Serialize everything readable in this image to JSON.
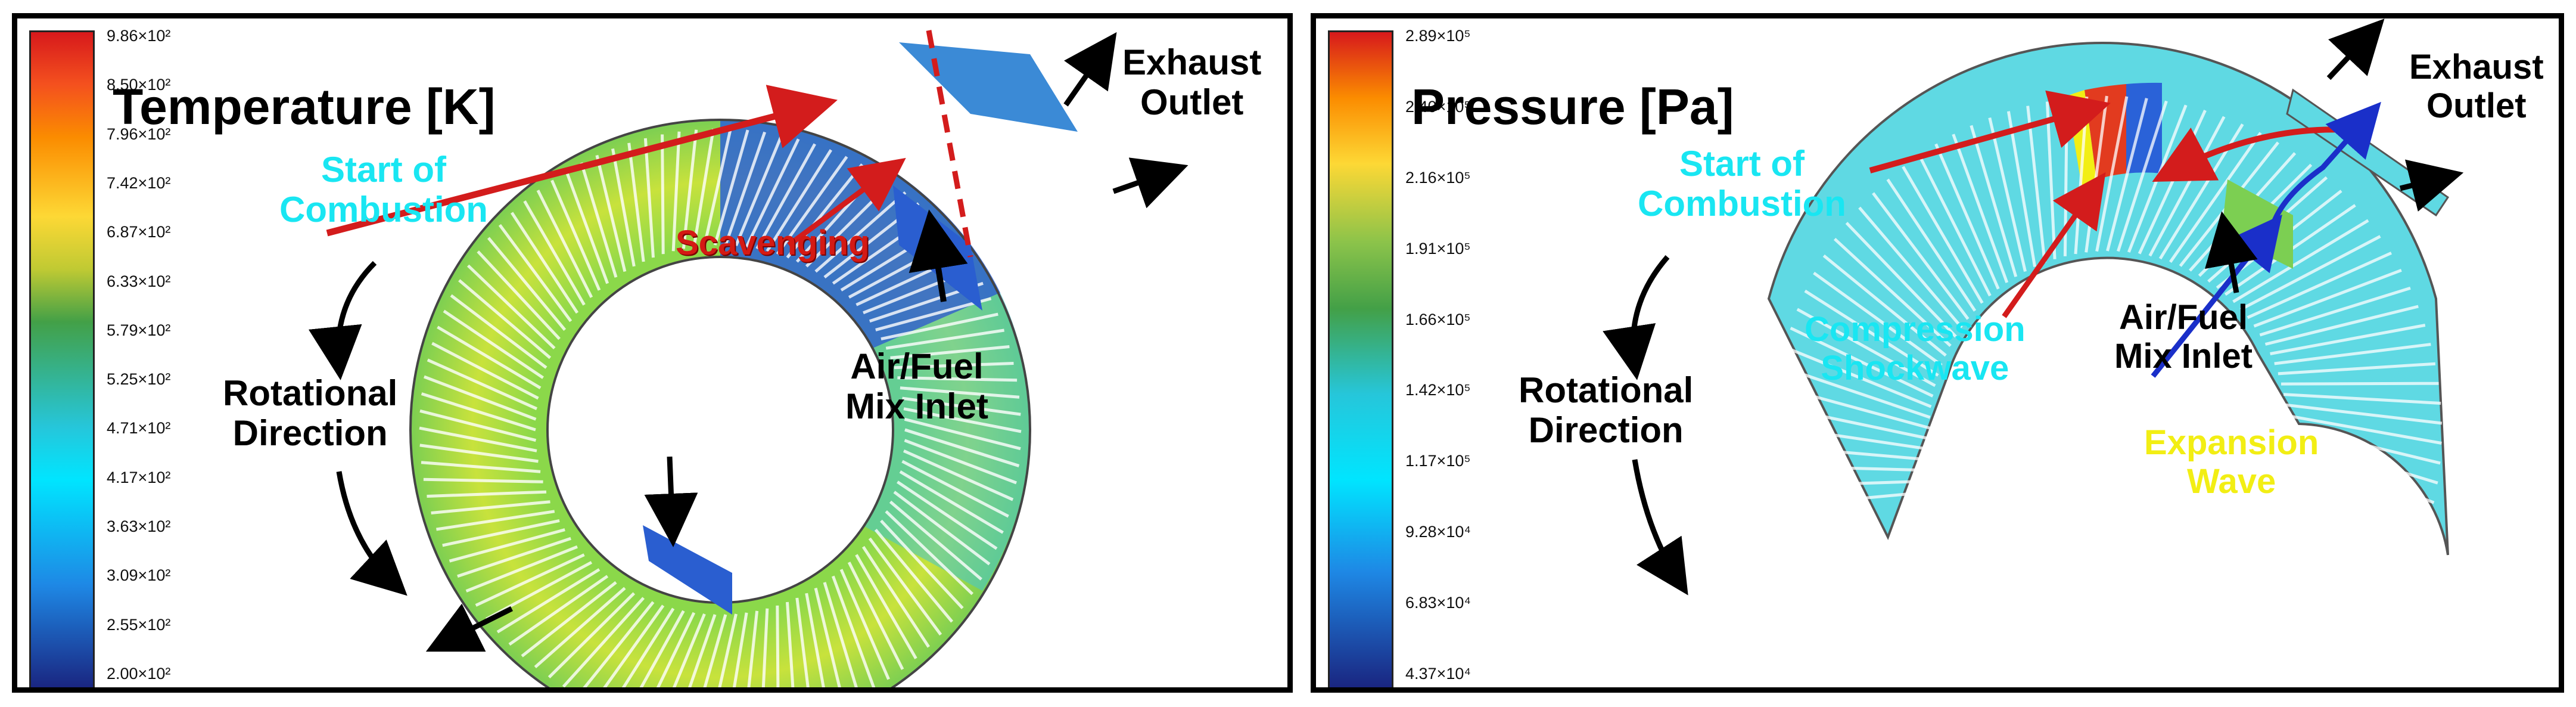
{
  "left": {
    "title": "Temperature [K]",
    "ticks": [
      "9.86×10²",
      "8.50×10²",
      "7.96×10²",
      "7.42×10²",
      "6.87×10²",
      "6.33×10²",
      "5.79×10²",
      "5.25×10²",
      "4.71×10²",
      "4.17×10²",
      "3.63×10²",
      "3.09×10²",
      "2.55×10²",
      "2.00×10²"
    ],
    "start_combustion": "Start of\nCombustion",
    "scavenging": "Scavenging",
    "inlet": "Air/Fuel\nMix Inlet",
    "exhaust": "Exhaust\nOutlet",
    "rotation": "Rotational\nDirection"
  },
  "right": {
    "title": "Pressure [Pa]",
    "ticks": [
      "2.89×10⁵",
      "2.40×10⁵",
      "2.16×10⁵",
      "1.91×10⁵",
      "1.66×10⁵",
      "1.42×10⁵",
      "1.17×10⁵",
      "9.28×10⁴",
      "6.83×10⁴",
      "4.37×10⁴"
    ],
    "start_combustion": "Start of\nCombustion",
    "compression": "Compression\nShockwave",
    "inlet": "Air/Fuel\nMix Inlet",
    "exhaust": "Exhaust\nOutlet",
    "expansion": "Expansion\nWave",
    "rotation": "Rotational\nDirection"
  },
  "colors": {
    "scale": [
      "#d7191c",
      "#f4511e",
      "#fb8c00",
      "#fdd835",
      "#c0ca33",
      "#43a047",
      "#26c6da",
      "#00e5ff",
      "#1e88e5",
      "#1e3fbf",
      "#1a237e"
    ],
    "ring_bg": "#59d6e6",
    "annotation_cyan": "#19e6f2",
    "scavenging_red": "#d41a14",
    "expansion_yellow": "#f2ee14",
    "arrow_red": "#d31c1c",
    "arrow_blue": "#1a2fc9"
  }
}
